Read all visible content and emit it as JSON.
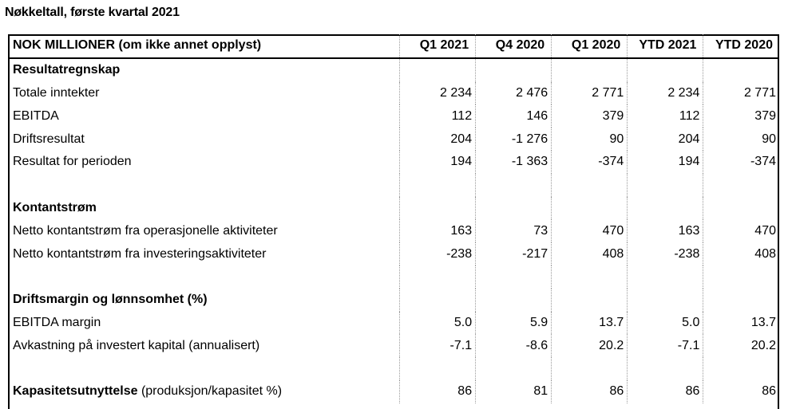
{
  "title": "Nøkkeltall, første kvartal 2021",
  "table": {
    "header_label": "NOK MILLIONER (om ikke annet opplyst)",
    "columns": [
      "Q1 2021",
      "Q4 2020",
      "Q1 2020",
      "YTD 2021",
      "YTD 2020"
    ],
    "rows": [
      {
        "kind": "section",
        "label": "Resultatregnskap",
        "values": []
      },
      {
        "kind": "data",
        "label": "Totale inntekter",
        "values": [
          "2 234",
          "2 476",
          "2 771",
          "2 234",
          "2 771"
        ]
      },
      {
        "kind": "data",
        "label": "EBITDA",
        "values": [
          "112",
          "146",
          "379",
          "112",
          "379"
        ]
      },
      {
        "kind": "data",
        "label": "Driftsresultat",
        "values": [
          "204",
          "-1 276",
          "90",
          "204",
          "90"
        ]
      },
      {
        "kind": "data",
        "label": "Resultat for perioden",
        "values": [
          "194",
          "-1 363",
          "-374",
          "194",
          "-374"
        ]
      },
      {
        "kind": "blank",
        "label": "",
        "values": []
      },
      {
        "kind": "section",
        "label": "Kontantstrøm",
        "values": []
      },
      {
        "kind": "data",
        "label": "Netto kontantstrøm fra operasjonelle aktiviteter",
        "values": [
          "163",
          "73",
          "470",
          "163",
          "470"
        ]
      },
      {
        "kind": "data",
        "label": "Netto kontantstrøm fra investeringsaktiviteter",
        "values": [
          "-238",
          "-217",
          "408",
          "-238",
          "408"
        ]
      },
      {
        "kind": "blank",
        "label": "",
        "values": []
      },
      {
        "kind": "section",
        "label": "Driftsmargin og lønnsomhet (%)",
        "values": []
      },
      {
        "kind": "data",
        "label": "EBITDA margin",
        "values": [
          "5.0",
          "5.9",
          "13.7",
          "5.0",
          "13.7"
        ]
      },
      {
        "kind": "data",
        "label": "Avkastning på investert kapital (annualisert)",
        "values": [
          "-7.1",
          "-8.6",
          "20.2",
          "-7.1",
          "20.2"
        ]
      },
      {
        "kind": "blank",
        "label": "",
        "values": []
      },
      {
        "kind": "mixed",
        "label": "Kapasitetsutnyttelse",
        "suffix": " (produksjon/kapasitet %)",
        "values": [
          "86",
          "81",
          "86",
          "86",
          "86"
        ]
      }
    ]
  }
}
